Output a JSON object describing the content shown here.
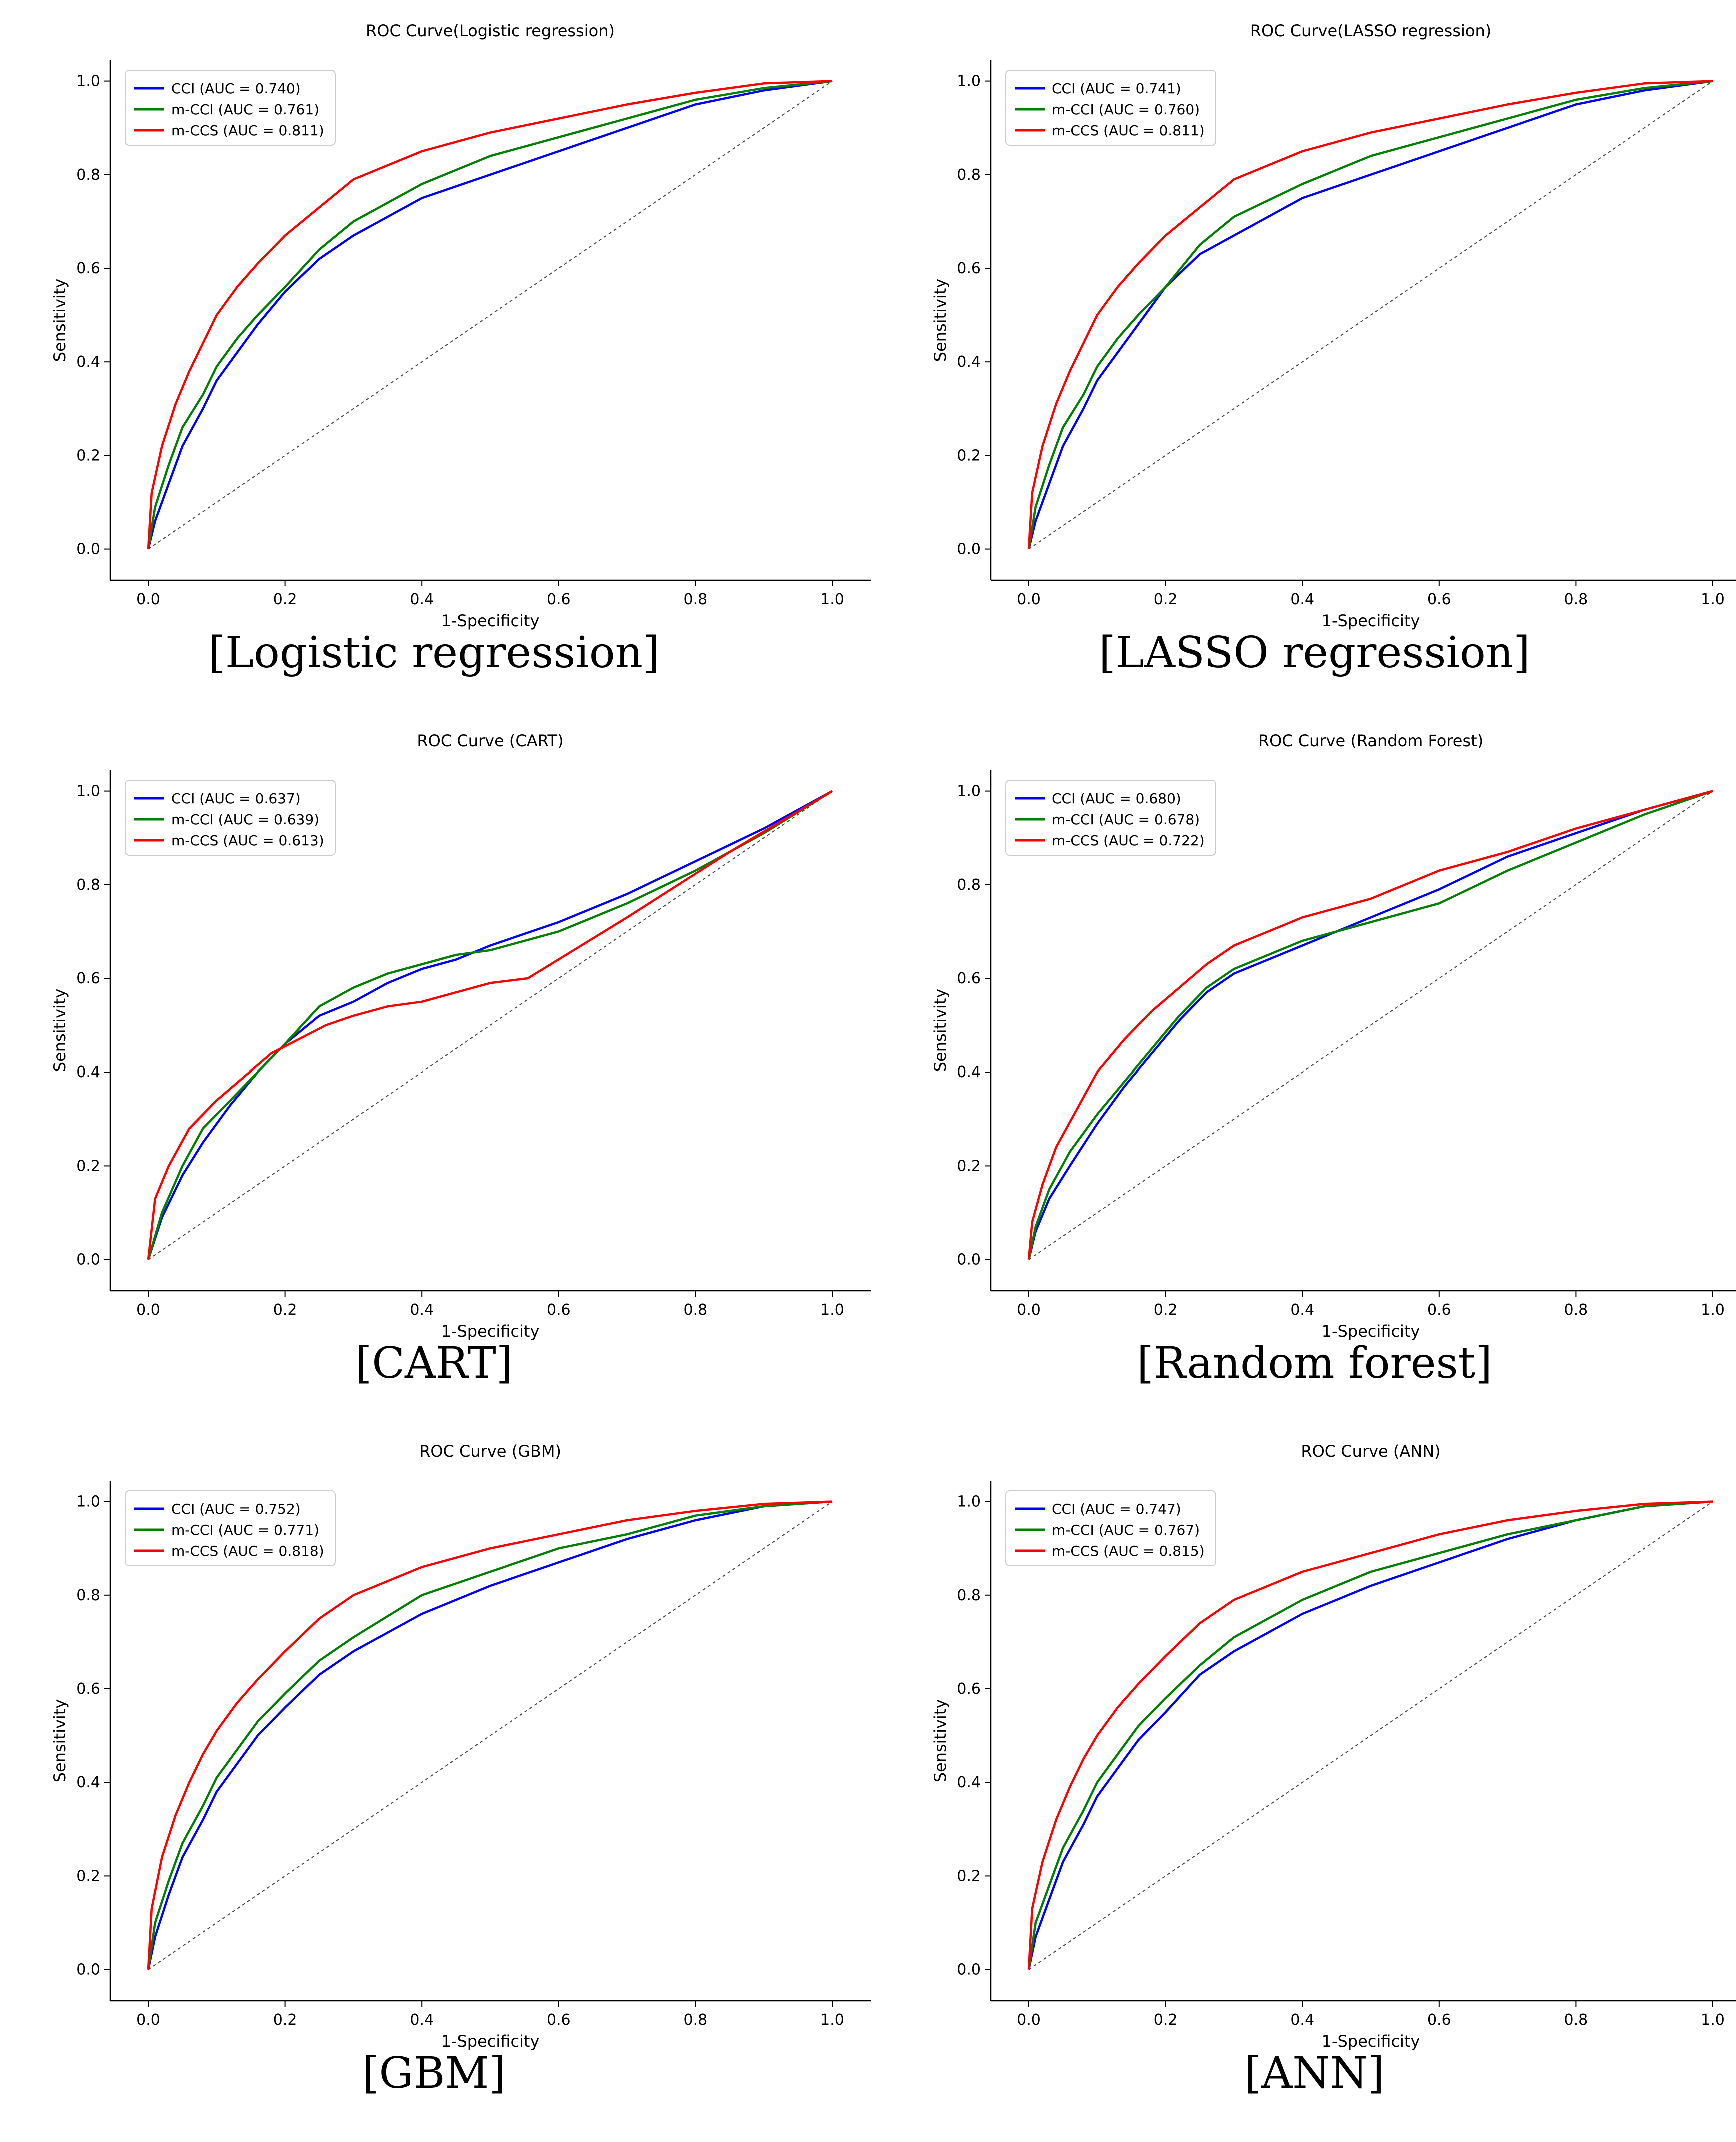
{
  "figure": {
    "diagonal_style": "dashed"
  },
  "colors": {
    "CCI": "#0000ff",
    "m-CCI": "#008000",
    "m-CCS": "#ff0000",
    "diagonal": "#444444"
  },
  "chart_data": [
    {
      "type": "line",
      "title": "ROC Curve(Logistic regression)",
      "caption": "[Logistic regression]",
      "xlabel": "1-Specificity",
      "ylabel": "Sensitivity",
      "xlim": [
        0,
        1
      ],
      "ylim": [
        0,
        1
      ],
      "x_ticks": [
        "0.0",
        "0.2",
        "0.4",
        "0.6",
        "0.8",
        "1.0"
      ],
      "y_ticks": [
        "0.0",
        "0.2",
        "0.4",
        "0.6",
        "0.8",
        "1.0"
      ],
      "legend_position": "top-left",
      "series": [
        {
          "name": "CCI",
          "label": "CCI (AUC = 0.740)",
          "color": "#0000ff",
          "x": [
            0,
            0.01,
            0.03,
            0.05,
            0.08,
            0.1,
            0.13,
            0.16,
            0.2,
            0.25,
            0.3,
            0.4,
            0.5,
            0.6,
            0.7,
            0.8,
            0.9,
            1.0
          ],
          "y": [
            0,
            0.06,
            0.14,
            0.22,
            0.3,
            0.36,
            0.42,
            0.48,
            0.55,
            0.62,
            0.67,
            0.75,
            0.8,
            0.85,
            0.9,
            0.95,
            0.98,
            1.0
          ]
        },
        {
          "name": "m-CCI",
          "label": "m-CCI (AUC = 0.761)",
          "color": "#008000",
          "x": [
            0,
            0.01,
            0.03,
            0.05,
            0.08,
            0.1,
            0.13,
            0.16,
            0.2,
            0.25,
            0.3,
            0.4,
            0.5,
            0.6,
            0.7,
            0.8,
            0.9,
            1.0
          ],
          "y": [
            0,
            0.09,
            0.18,
            0.26,
            0.33,
            0.39,
            0.45,
            0.5,
            0.56,
            0.64,
            0.7,
            0.78,
            0.84,
            0.88,
            0.92,
            0.96,
            0.985,
            1.0
          ]
        },
        {
          "name": "m-CCS",
          "label": "m-CCS (AUC = 0.811)",
          "color": "#ff0000",
          "x": [
            0,
            0.005,
            0.02,
            0.04,
            0.06,
            0.08,
            0.1,
            0.13,
            0.16,
            0.2,
            0.25,
            0.3,
            0.4,
            0.5,
            0.6,
            0.7,
            0.8,
            0.9,
            1.0
          ],
          "y": [
            0,
            0.12,
            0.22,
            0.31,
            0.38,
            0.44,
            0.5,
            0.56,
            0.61,
            0.67,
            0.73,
            0.79,
            0.85,
            0.89,
            0.92,
            0.95,
            0.975,
            0.995,
            1.0
          ]
        }
      ]
    },
    {
      "type": "line",
      "title": "ROC Curve(LASSO regression)",
      "caption": "[LASSO regression]",
      "xlabel": "1-Specificity",
      "ylabel": "Sensitivity",
      "xlim": [
        0,
        1
      ],
      "ylim": [
        0,
        1
      ],
      "x_ticks": [
        "0.0",
        "0.2",
        "0.4",
        "0.6",
        "0.8",
        "1.0"
      ],
      "y_ticks": [
        "0.0",
        "0.2",
        "0.4",
        "0.6",
        "0.8",
        "1.0"
      ],
      "legend_position": "top-left",
      "series": [
        {
          "name": "CCI",
          "label": "CCI (AUC = 0.741)",
          "color": "#0000ff",
          "x": [
            0,
            0.01,
            0.03,
            0.05,
            0.08,
            0.1,
            0.13,
            0.16,
            0.2,
            0.25,
            0.3,
            0.4,
            0.5,
            0.6,
            0.7,
            0.8,
            0.9,
            1.0
          ],
          "y": [
            0,
            0.06,
            0.14,
            0.22,
            0.3,
            0.36,
            0.42,
            0.48,
            0.56,
            0.63,
            0.67,
            0.75,
            0.8,
            0.85,
            0.9,
            0.95,
            0.98,
            1.0
          ]
        },
        {
          "name": "m-CCI",
          "label": "m-CCI (AUC = 0.760)",
          "color": "#008000",
          "x": [
            0,
            0.01,
            0.03,
            0.05,
            0.08,
            0.1,
            0.13,
            0.16,
            0.2,
            0.25,
            0.3,
            0.4,
            0.5,
            0.6,
            0.7,
            0.8,
            0.9,
            1.0
          ],
          "y": [
            0,
            0.09,
            0.18,
            0.26,
            0.33,
            0.39,
            0.45,
            0.5,
            0.56,
            0.65,
            0.71,
            0.78,
            0.84,
            0.88,
            0.92,
            0.96,
            0.985,
            1.0
          ]
        },
        {
          "name": "m-CCS",
          "label": "m-CCS (AUC = 0.811)",
          "color": "#ff0000",
          "x": [
            0,
            0.005,
            0.02,
            0.04,
            0.06,
            0.08,
            0.1,
            0.13,
            0.16,
            0.2,
            0.25,
            0.3,
            0.4,
            0.5,
            0.6,
            0.7,
            0.8,
            0.9,
            1.0
          ],
          "y": [
            0,
            0.12,
            0.22,
            0.31,
            0.38,
            0.44,
            0.5,
            0.56,
            0.61,
            0.67,
            0.73,
            0.79,
            0.85,
            0.89,
            0.92,
            0.95,
            0.975,
            0.995,
            1.0
          ]
        }
      ]
    },
    {
      "type": "line",
      "title": "ROC Curve (CART)",
      "caption": "[CART]",
      "xlabel": "1-Specificity",
      "ylabel": "Sensitivity",
      "xlim": [
        0,
        1
      ],
      "ylim": [
        0,
        1
      ],
      "x_ticks": [
        "0.0",
        "0.2",
        "0.4",
        "0.6",
        "0.8",
        "1.0"
      ],
      "y_ticks": [
        "0.0",
        "0.2",
        "0.4",
        "0.6",
        "0.8",
        "1.0"
      ],
      "legend_position": "top-left",
      "series": [
        {
          "name": "CCI",
          "label": "CCI (AUC = 0.637)",
          "color": "#0000ff",
          "x": [
            0,
            0.02,
            0.05,
            0.08,
            0.12,
            0.16,
            0.2,
            0.25,
            0.3,
            0.35,
            0.4,
            0.45,
            0.5,
            0.6,
            0.7,
            0.8,
            0.9,
            1.0
          ],
          "y": [
            0,
            0.09,
            0.18,
            0.25,
            0.33,
            0.4,
            0.46,
            0.52,
            0.55,
            0.59,
            0.62,
            0.64,
            0.67,
            0.72,
            0.78,
            0.85,
            0.92,
            1.0
          ]
        },
        {
          "name": "m-CCI",
          "label": "m-CCI (AUC = 0.639)",
          "color": "#008000",
          "x": [
            0,
            0.02,
            0.05,
            0.08,
            0.12,
            0.16,
            0.2,
            0.25,
            0.3,
            0.35,
            0.4,
            0.45,
            0.5,
            0.6,
            0.7,
            0.8,
            0.9,
            1.0
          ],
          "y": [
            0,
            0.1,
            0.2,
            0.28,
            0.34,
            0.4,
            0.46,
            0.54,
            0.58,
            0.61,
            0.63,
            0.65,
            0.66,
            0.7,
            0.76,
            0.83,
            0.91,
            1.0
          ]
        },
        {
          "name": "m-CCS",
          "label": "m-CCS (AUC = 0.613)",
          "color": "#ff0000",
          "x": [
            0,
            0.01,
            0.03,
            0.06,
            0.1,
            0.14,
            0.18,
            0.22,
            0.26,
            0.3,
            0.35,
            0.4,
            0.45,
            0.5,
            0.555,
            0.7,
            0.85,
            1.0
          ],
          "y": [
            0,
            0.13,
            0.2,
            0.28,
            0.34,
            0.39,
            0.44,
            0.47,
            0.5,
            0.52,
            0.54,
            0.55,
            0.57,
            0.59,
            0.6,
            0.73,
            0.87,
            1.0
          ]
        }
      ]
    },
    {
      "type": "line",
      "title": "ROC Curve (Random Forest)",
      "caption": "[Random forest]",
      "xlabel": "1-Specificity",
      "ylabel": "Sensitivity",
      "xlim": [
        0,
        1
      ],
      "ylim": [
        0,
        1
      ],
      "x_ticks": [
        "0.0",
        "0.2",
        "0.4",
        "0.6",
        "0.8",
        "1.0"
      ],
      "y_ticks": [
        "0.0",
        "0.2",
        "0.4",
        "0.6",
        "0.8",
        "1.0"
      ],
      "legend_position": "top-left",
      "series": [
        {
          "name": "CCI",
          "label": "CCI (AUC = 0.680)",
          "color": "#0000ff",
          "x": [
            0,
            0.01,
            0.03,
            0.06,
            0.1,
            0.14,
            0.18,
            0.22,
            0.26,
            0.3,
            0.35,
            0.4,
            0.45,
            0.5,
            0.6,
            0.7,
            0.8,
            0.9,
            1.0
          ],
          "y": [
            0,
            0.06,
            0.13,
            0.2,
            0.29,
            0.37,
            0.44,
            0.51,
            0.57,
            0.61,
            0.64,
            0.67,
            0.7,
            0.73,
            0.79,
            0.86,
            0.91,
            0.96,
            1.0
          ]
        },
        {
          "name": "m-CCI",
          "label": "m-CCI (AUC = 0.678)",
          "color": "#008000",
          "x": [
            0,
            0.01,
            0.03,
            0.06,
            0.1,
            0.14,
            0.18,
            0.22,
            0.26,
            0.3,
            0.35,
            0.4,
            0.45,
            0.5,
            0.6,
            0.7,
            0.8,
            0.9,
            1.0
          ],
          "y": [
            0,
            0.07,
            0.15,
            0.23,
            0.31,
            0.38,
            0.45,
            0.52,
            0.58,
            0.62,
            0.65,
            0.68,
            0.7,
            0.72,
            0.76,
            0.83,
            0.89,
            0.95,
            1.0
          ]
        },
        {
          "name": "m-CCS",
          "label": "m-CCS (AUC = 0.722)",
          "color": "#ff0000",
          "x": [
            0,
            0.005,
            0.02,
            0.04,
            0.07,
            0.1,
            0.14,
            0.18,
            0.22,
            0.26,
            0.3,
            0.35,
            0.4,
            0.5,
            0.6,
            0.7,
            0.8,
            0.9,
            1.0
          ],
          "y": [
            0,
            0.08,
            0.16,
            0.24,
            0.32,
            0.4,
            0.47,
            0.53,
            0.58,
            0.63,
            0.67,
            0.7,
            0.73,
            0.77,
            0.83,
            0.87,
            0.92,
            0.96,
            1.0
          ]
        }
      ]
    },
    {
      "type": "line",
      "title": "ROC Curve (GBM)",
      "caption": "[GBM]",
      "xlabel": "1-Specificity",
      "ylabel": "Sensitivity",
      "xlim": [
        0,
        1
      ],
      "ylim": [
        0,
        1
      ],
      "x_ticks": [
        "0.0",
        "0.2",
        "0.4",
        "0.6",
        "0.8",
        "1.0"
      ],
      "y_ticks": [
        "0.0",
        "0.2",
        "0.4",
        "0.6",
        "0.8",
        "1.0"
      ],
      "legend_position": "top-left",
      "series": [
        {
          "name": "CCI",
          "label": "CCI (AUC = 0.752)",
          "color": "#0000ff",
          "x": [
            0,
            0.01,
            0.03,
            0.05,
            0.08,
            0.1,
            0.13,
            0.16,
            0.2,
            0.25,
            0.3,
            0.4,
            0.5,
            0.6,
            0.7,
            0.8,
            0.9,
            1.0
          ],
          "y": [
            0,
            0.07,
            0.16,
            0.24,
            0.32,
            0.38,
            0.44,
            0.5,
            0.56,
            0.63,
            0.68,
            0.76,
            0.82,
            0.87,
            0.92,
            0.96,
            0.99,
            1.0
          ]
        },
        {
          "name": "m-CCI",
          "label": "m-CCI (AUC = 0.771)",
          "color": "#008000",
          "x": [
            0,
            0.01,
            0.03,
            0.05,
            0.08,
            0.1,
            0.13,
            0.16,
            0.2,
            0.25,
            0.3,
            0.4,
            0.5,
            0.6,
            0.7,
            0.8,
            0.9,
            1.0
          ],
          "y": [
            0,
            0.1,
            0.19,
            0.27,
            0.35,
            0.41,
            0.47,
            0.53,
            0.59,
            0.66,
            0.71,
            0.8,
            0.85,
            0.9,
            0.93,
            0.97,
            0.99,
            1.0
          ]
        },
        {
          "name": "m-CCS",
          "label": "m-CCS (AUC = 0.818)",
          "color": "#ff0000",
          "x": [
            0,
            0.005,
            0.02,
            0.04,
            0.06,
            0.08,
            0.1,
            0.13,
            0.16,
            0.2,
            0.25,
            0.3,
            0.4,
            0.5,
            0.6,
            0.7,
            0.8,
            0.9,
            1.0
          ],
          "y": [
            0,
            0.13,
            0.24,
            0.33,
            0.4,
            0.46,
            0.51,
            0.57,
            0.62,
            0.68,
            0.75,
            0.8,
            0.86,
            0.9,
            0.93,
            0.96,
            0.98,
            0.995,
            1.0
          ]
        }
      ]
    },
    {
      "type": "line",
      "title": "ROC Curve (ANN)",
      "caption": "[ANN]",
      "xlabel": "1-Specificity",
      "ylabel": "Sensitivity",
      "xlim": [
        0,
        1
      ],
      "ylim": [
        0,
        1
      ],
      "x_ticks": [
        "0.0",
        "0.2",
        "0.4",
        "0.6",
        "0.8",
        "1.0"
      ],
      "y_ticks": [
        "0.0",
        "0.2",
        "0.4",
        "0.6",
        "0.8",
        "1.0"
      ],
      "legend_position": "top-left",
      "series": [
        {
          "name": "CCI",
          "label": "CCI (AUC = 0.747)",
          "color": "#0000ff",
          "x": [
            0,
            0.01,
            0.03,
            0.05,
            0.08,
            0.1,
            0.13,
            0.16,
            0.2,
            0.25,
            0.3,
            0.4,
            0.5,
            0.6,
            0.7,
            0.8,
            0.9,
            1.0
          ],
          "y": [
            0,
            0.07,
            0.15,
            0.23,
            0.31,
            0.37,
            0.43,
            0.49,
            0.55,
            0.63,
            0.68,
            0.76,
            0.82,
            0.87,
            0.92,
            0.96,
            0.99,
            1.0
          ]
        },
        {
          "name": "m-CCI",
          "label": "m-CCI (AUC = 0.767)",
          "color": "#008000",
          "x": [
            0,
            0.01,
            0.03,
            0.05,
            0.08,
            0.1,
            0.13,
            0.16,
            0.2,
            0.25,
            0.3,
            0.4,
            0.5,
            0.6,
            0.7,
            0.8,
            0.9,
            1.0
          ],
          "y": [
            0,
            0.1,
            0.18,
            0.26,
            0.34,
            0.4,
            0.46,
            0.52,
            0.58,
            0.65,
            0.71,
            0.79,
            0.85,
            0.89,
            0.93,
            0.96,
            0.99,
            1.0
          ]
        },
        {
          "name": "m-CCS",
          "label": "m-CCS (AUC = 0.815)",
          "color": "#ff0000",
          "x": [
            0,
            0.005,
            0.02,
            0.04,
            0.06,
            0.08,
            0.1,
            0.13,
            0.16,
            0.2,
            0.25,
            0.3,
            0.4,
            0.5,
            0.6,
            0.7,
            0.8,
            0.9,
            1.0
          ],
          "y": [
            0,
            0.13,
            0.23,
            0.32,
            0.39,
            0.45,
            0.5,
            0.56,
            0.61,
            0.67,
            0.74,
            0.79,
            0.85,
            0.89,
            0.93,
            0.96,
            0.98,
            0.995,
            1.0
          ]
        }
      ]
    }
  ]
}
